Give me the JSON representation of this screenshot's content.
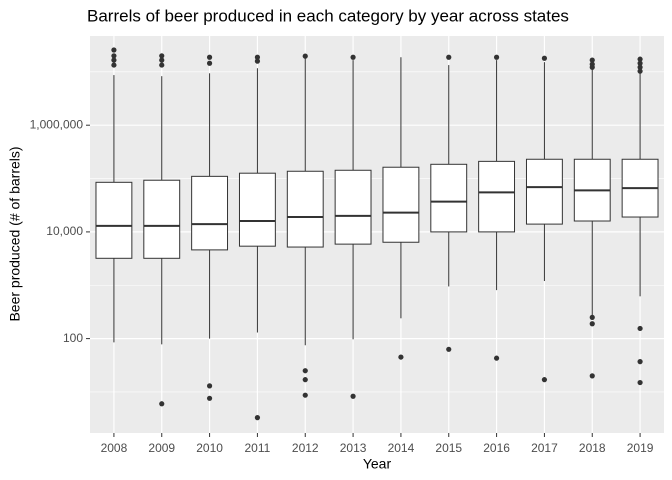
{
  "chart_data": {
    "type": "boxplot",
    "title": "Barrels of beer produced in each category by year across states",
    "x_label": "Year",
    "y_label": "Beer produced (# of barrels)",
    "categories": [
      "2008",
      "2009",
      "2010",
      "2011",
      "2012",
      "2013",
      "2014",
      "2015",
      "2016",
      "2017",
      "2018",
      "2019"
    ],
    "boxes": [
      {
        "min": 85,
        "q1": 3200,
        "median": 13000,
        "q3": 85000,
        "max": 8700000,
        "outliers": [
          25700000,
          20000000,
          16600000,
          13400000
        ]
      },
      {
        "min": 78,
        "q1": 3200,
        "median": 13000,
        "q3": 93000,
        "max": 8300000,
        "outliers": [
          20000000,
          16600000,
          13400000,
          6
        ]
      },
      {
        "min": 100,
        "q1": 4600,
        "median": 14000,
        "q3": 110000,
        "max": 9400000,
        "outliers": [
          18800000,
          14500000,
          13,
          7.6
        ]
      },
      {
        "min": 130,
        "q1": 5400,
        "median": 16000,
        "q3": 126000,
        "max": 11700000,
        "outliers": [
          18800000,
          15900000,
          3.3
        ]
      },
      {
        "min": 75,
        "q1": 5200,
        "median": 19000,
        "q3": 137000,
        "max": 18000000,
        "outliers": [
          19700000,
          25,
          17,
          8.7
        ]
      },
      {
        "min": 97,
        "q1": 5900,
        "median": 20000,
        "q3": 143000,
        "max": 16600000,
        "outliers": [
          18800000,
          8.3
        ]
      },
      {
        "min": 240,
        "q1": 6400,
        "median": 23000,
        "q3": 163000,
        "max": 18800000,
        "outliers": [
          45
        ]
      },
      {
        "min": 950,
        "q1": 10000,
        "median": 37000,
        "q3": 185000,
        "max": 13400000,
        "outliers": [
          18800000,
          63
        ]
      },
      {
        "min": 810,
        "q1": 10000,
        "median": 55000,
        "q3": 210000,
        "max": 16600000,
        "outliers": [
          18800000,
          43
        ]
      },
      {
        "min": 1200,
        "q1": 14000,
        "median": 69000,
        "q3": 230000,
        "max": 15200000,
        "outliers": [
          18000000,
          17
        ]
      },
      {
        "min": 260,
        "q1": 16000,
        "median": 60000,
        "q3": 230000,
        "max": 12800000,
        "outliers": [
          16600000,
          13900000,
          12200000,
          250,
          190,
          20
        ]
      },
      {
        "min": 620,
        "q1": 19000,
        "median": 66000,
        "q3": 230000,
        "max": 11700000,
        "outliers": [
          17300000,
          14500000,
          12200000,
          10300000,
          155,
          37,
          15
        ]
      }
    ],
    "color": "#333333",
    "fill": "#ffffff",
    "log_y": true,
    "grid": true,
    "minor_grid": true,
    "ylim": [
      1.7,
      47000000
    ],
    "yticks": [
      100,
      {
        "value": 10000,
        "label": "10,000"
      },
      {
        "value": 1000000,
        "label": "1,000,000"
      }
    ]
  }
}
